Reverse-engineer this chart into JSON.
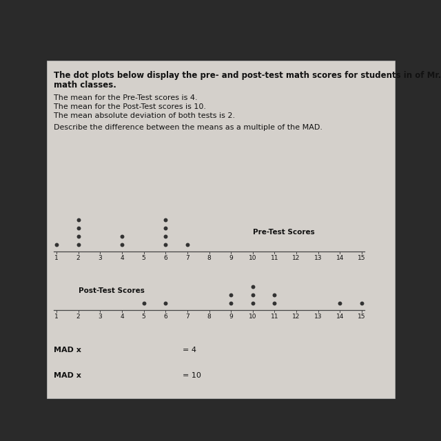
{
  "title_line1": "The dot plots below display the pre- and post-test math scores for students in of Mr. Perez’s",
  "title_line2": "math classes.",
  "info_line1": "The mean for the Pre-Test scores is 4.",
  "info_line2": "The mean for the Post-Test scores is 10.",
  "info_line3": "The mean absolute deviation of both tests is 2.",
  "question": "Describe the difference between the means as a multiple of the MAD.",
  "pre_test_label": "Pre-Test Scores",
  "post_test_label": "Post-Test Scores",
  "pre_test_dots": [
    [
      1,
      2,
      4,
      6,
      7
    ],
    [
      2,
      4,
      6
    ],
    [
      2,
      6
    ],
    [
      2,
      6
    ]
  ],
  "post_test_dots": [
    [
      5,
      6,
      9,
      10,
      11,
      14,
      15
    ],
    [
      9,
      10,
      11
    ],
    [
      10
    ]
  ],
  "x_min": 1,
  "x_max": 15,
  "x_ticks": [
    1,
    2,
    3,
    4,
    5,
    6,
    7,
    8,
    9,
    10,
    11,
    12,
    13,
    14,
    15
  ],
  "dot_color": "#333333",
  "dot_size": 18,
  "bg_color": "#2a2a2a",
  "panel_color": "#d4d0cb",
  "text_color": "#111111",
  "mad_label1": "MAD x",
  "mad_value1": "= 4",
  "mad_label2": "MAD x",
  "mad_value2": "= 10",
  "font_size_title": 8.5,
  "font_size_text": 8,
  "font_size_label": 7.5,
  "font_size_tick": 6.5
}
